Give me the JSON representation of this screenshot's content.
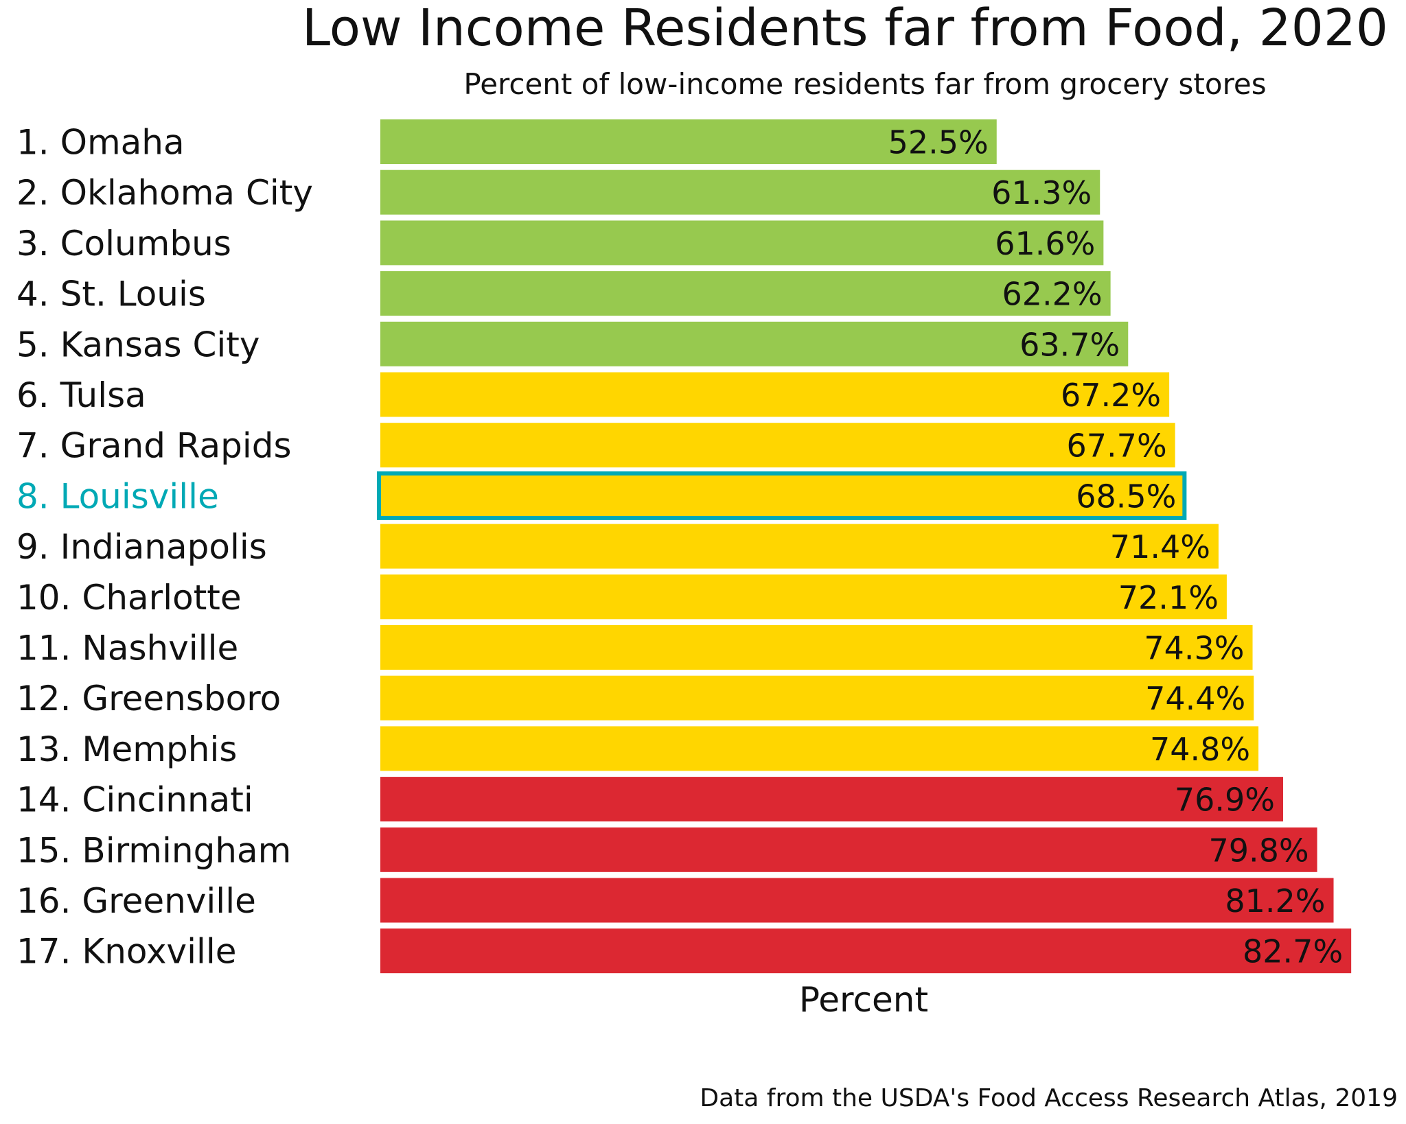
{
  "chart_data": {
    "type": "bar",
    "orientation": "horizontal",
    "title": "Low Income Residents far from Food, 2020",
    "subtitle": "Percent of low-income residents far from grocery stores",
    "xlabel": "Percent",
    "ylabel": "",
    "footer": "Data from the USDA's Food Access Research Atlas, 2019",
    "xlim": [
      0,
      85
    ],
    "grid": false,
    "categories": [
      "1. Omaha",
      "2. Oklahoma City",
      "3. Columbus",
      "4. St. Louis",
      "5. Kansas City",
      "6. Tulsa",
      "7. Grand Rapids",
      "8. Louisville",
      "9. Indianapolis",
      "10. Charlotte",
      "11. Nashville",
      "12. Greensboro",
      "13. Memphis",
      "14. Cincinnati",
      "15. Birmingham",
      "16. Greenville",
      "17. Knoxville"
    ],
    "values": [
      52.5,
      61.3,
      61.6,
      62.2,
      63.7,
      67.2,
      67.7,
      68.5,
      71.4,
      72.1,
      74.3,
      74.4,
      74.8,
      76.9,
      79.8,
      81.2,
      82.7
    ],
    "value_labels": [
      "52.5%",
      "61.3%",
      "61.6%",
      "62.2%",
      "63.7%",
      "67.2%",
      "67.7%",
      "68.5%",
      "71.4%",
      "72.1%",
      "74.3%",
      "74.4%",
      "74.8%",
      "76.9%",
      "79.8%",
      "81.2%",
      "82.7%"
    ],
    "color_groups": [
      "green",
      "green",
      "green",
      "green",
      "green",
      "yellow",
      "yellow",
      "yellow",
      "yellow",
      "yellow",
      "yellow",
      "yellow",
      "yellow",
      "red",
      "red",
      "red",
      "red"
    ],
    "highlight_index": 7
  },
  "colors": {
    "green": "#97C94F",
    "yellow": "#FFD600",
    "red": "#DC2832",
    "highlight": "#00A9B5",
    "text": "#111111"
  }
}
